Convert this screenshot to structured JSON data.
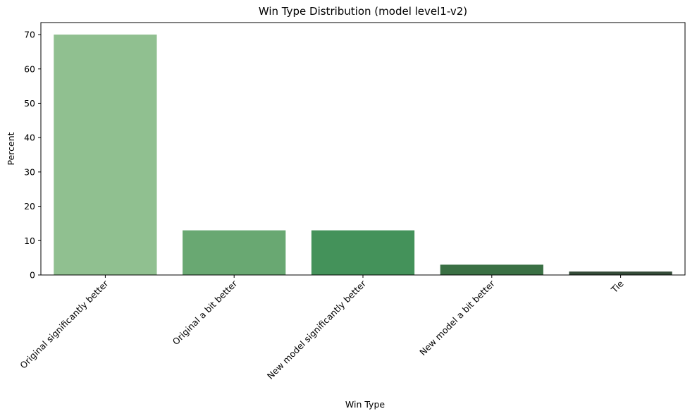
{
  "chart_data": {
    "type": "bar",
    "title": "Win Type Distribution (model level1-v2)",
    "xlabel": "Win Type",
    "ylabel": "Percent",
    "categories": [
      "Original significantly better",
      "Original a bit better",
      "New model significantly better",
      "New model a bit better",
      "Tie"
    ],
    "values": [
      70,
      13,
      13,
      3,
      1
    ],
    "bar_colors": [
      "#90c090",
      "#69a872",
      "#44925a",
      "#3a7044",
      "#344b38"
    ],
    "ylim": [
      0,
      73.5
    ],
    "yticks": [
      0,
      10,
      20,
      30,
      40,
      50,
      60,
      70
    ],
    "grid": false,
    "legend": "none"
  }
}
